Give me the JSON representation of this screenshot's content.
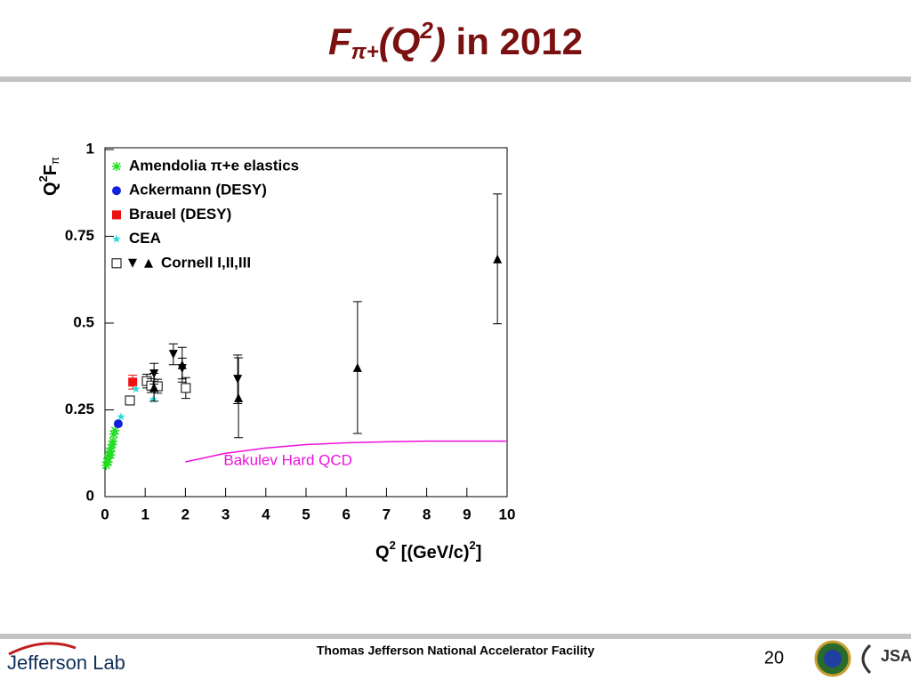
{
  "slide": {
    "title": {
      "main": "F",
      "sub": "π+",
      "open": "(Q",
      "sup": "2",
      "close": ")",
      "rest": " in 2012"
    },
    "footer": {
      "org": "Thomas Jefferson National Accelerator Facility",
      "page": "20",
      "logo_left": "Jefferson Lab",
      "logo_right": "JSA"
    }
  },
  "chart_data": {
    "type": "scatter",
    "y_label": {
      "main": "Q",
      "sup": "2",
      "rest": "F",
      "sub": "π"
    },
    "x_label": {
      "main": "Q",
      "sup": "2",
      "rest": "[(GeV/c)",
      "sup2": "2",
      "close": "]"
    },
    "xlim": [
      0,
      10
    ],
    "ylim": [
      0,
      1
    ],
    "xticks": [
      0,
      1,
      2,
      3,
      4,
      5,
      6,
      7,
      8,
      9,
      10
    ],
    "yticks": [
      0,
      0.25,
      0.5,
      0.75,
      1
    ],
    "legend": "top-left",
    "series": [
      {
        "name": "Amendolia π+e elastics",
        "color": "#22dd22",
        "marker": "asterisk",
        "x": [
          0.03,
          0.05,
          0.07,
          0.08,
          0.1,
          0.12,
          0.14,
          0.16,
          0.18,
          0.2,
          0.22,
          0.25
        ],
        "values": [
          0.09,
          0.1,
          0.11,
          0.1,
          0.12,
          0.13,
          0.12,
          0.14,
          0.15,
          0.16,
          0.18,
          0.19
        ]
      },
      {
        "name": "Ackermann (DESY)",
        "color": "#1020dd",
        "marker": "circle",
        "x": [
          0.33
        ],
        "values": [
          0.21
        ]
      },
      {
        "name": "Brauel (DESY)",
        "color": "#ee1111",
        "marker": "square-filled",
        "x": [
          0.69
        ],
        "values": [
          0.33
        ],
        "errors": [
          0.02
        ]
      },
      {
        "name": "CEA",
        "color": "#22dddd",
        "marker": "star",
        "x": [
          0.4,
          0.77,
          1.2
        ],
        "values": [
          0.23,
          0.31,
          0.28
        ]
      },
      {
        "name": "Cornell I,II,III",
        "color": "#000000",
        "markers": [
          "square",
          "square",
          "square",
          "square",
          "square",
          "down",
          "down",
          "down",
          "down",
          "up",
          "up",
          "up",
          "up",
          "up"
        ],
        "x": [
          0.62,
          1.04,
          1.15,
          1.31,
          2.01,
          1.7,
          1.22,
          1.92,
          3.3,
          1.22,
          1.92,
          3.32,
          6.28,
          9.76
        ],
        "values": [
          0.277,
          0.333,
          0.32,
          0.318,
          0.313,
          0.41,
          0.354,
          0.369,
          0.338,
          0.315,
          0.38,
          0.285,
          0.372,
          0.685
        ],
        "errors": [
          0.01,
          0.02,
          0.02,
          0.02,
          0.03,
          0.03,
          0.03,
          0.03,
          0.07,
          0.04,
          0.05,
          0.115,
          0.19,
          0.187
        ]
      }
    ],
    "curve": {
      "name": "Bakulev Hard QCD",
      "color": "#ee11dd",
      "x": [
        2,
        3,
        4,
        5,
        6,
        7,
        8,
        9,
        10
      ],
      "values": [
        0.1,
        0.125,
        0.14,
        0.15,
        0.155,
        0.158,
        0.16,
        0.16,
        0.16
      ]
    }
  }
}
